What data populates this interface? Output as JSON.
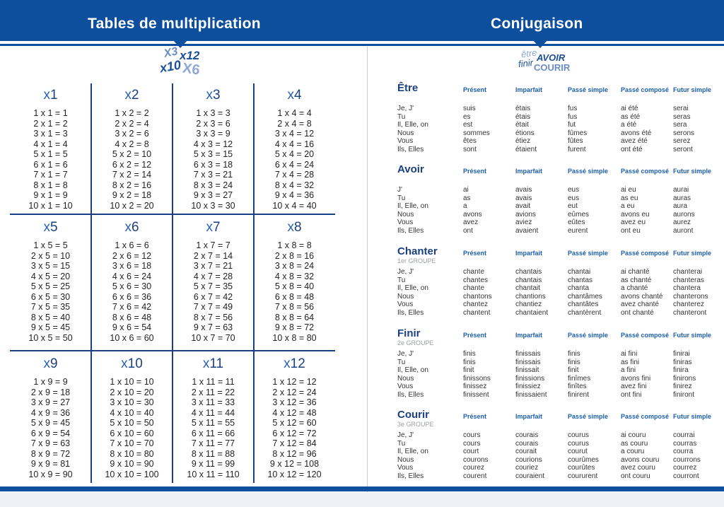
{
  "left_page": {
    "title": "Tables de multiplication",
    "deco_icon": "multiplication-signs-decoration",
    "deco_text": [
      "X3",
      "x12",
      "x10",
      "X6"
    ],
    "tables": [
      {
        "n": "1",
        "rows": [
          "1 x 1 = 1",
          "2 x 1 = 2",
          "3 x 1 = 3",
          "4 x 1 = 4",
          "5 x 1 = 5",
          "6 x 1 = 6",
          "7 x 1 = 7",
          "8 x 1 = 8",
          "9 x 1 = 9",
          "10 x 1 = 10"
        ]
      },
      {
        "n": "2",
        "rows": [
          "1 x 2 = 2",
          "2 x 2 = 4",
          "3 x 2 = 6",
          "4 x 2 = 8",
          "5 x 2 = 10",
          "6 x 2 = 12",
          "7 x 2 = 14",
          "8 x 2 = 16",
          "9 x 2 = 18",
          "10 x 2 = 20"
        ]
      },
      {
        "n": "3",
        "rows": [
          "1 x 3 = 3",
          "2 x 3 = 6",
          "3 x 3 = 9",
          "4 x 3 = 12",
          "5 x 3 = 15",
          "6 x 3 = 18",
          "7 x 3 = 21",
          "8 x 3 = 24",
          "9 x 3 = 27",
          "10 x 3 = 30"
        ]
      },
      {
        "n": "4",
        "rows": [
          "1 x 4 = 4",
          "2 x 4 = 8",
          "3 x 4 = 12",
          "4 x 4 = 16",
          "5 x 4 = 20",
          "6 x 4 = 24",
          "7 x 4 = 28",
          "8 x 4 = 32",
          "9 x 4 = 36",
          "10 x 4 = 40"
        ]
      },
      {
        "n": "5",
        "rows": [
          "1 x 5 = 5",
          "2 x 5 = 10",
          "3 x 5 = 15",
          "4 x 5 = 20",
          "5 x 5 = 25",
          "6 x 5 = 30",
          "7 x 5 = 35",
          "8 x 5 = 40",
          "9 x 5 = 45",
          "10 x 5 = 50"
        ]
      },
      {
        "n": "6",
        "rows": [
          "1 x 6 = 6",
          "2 x 6 = 12",
          "3 x 6 = 18",
          "4 x 6 = 24",
          "5 x 6 = 30",
          "6 x 6 = 36",
          "7 x 6 = 42",
          "8 x 6 = 48",
          "9 x 6 = 54",
          "10 x 6 = 60"
        ]
      },
      {
        "n": "7",
        "rows": [
          "1 x 7 = 7",
          "2 x 7 = 14",
          "3 x 7 = 21",
          "4 x 7 = 28",
          "5 x 7 = 35",
          "6 x 7 = 42",
          "7 x 7 = 49",
          "8 x 7 = 56",
          "9 x 7 = 63",
          "10 x 7 = 70"
        ]
      },
      {
        "n": "8",
        "rows": [
          "1 x 8 = 8",
          "2 x 8 = 16",
          "3 x 8 = 24",
          "4 x 8 = 32",
          "5 x 8 = 40",
          "6 x 8 = 48",
          "7 x 8 = 56",
          "8 x 8 = 64",
          "9 x 8 = 72",
          "10 x 8 = 80"
        ]
      },
      {
        "n": "9",
        "rows": [
          "1 x 9 = 9",
          "2 x 9 = 18",
          "3 x 9 = 27",
          "4 x 9 = 36",
          "5 x 9 = 45",
          "6 x 9 = 54",
          "7 x 9 = 63",
          "8 x 9 = 72",
          "9 x 9 = 81",
          "10 x 9 = 90"
        ]
      },
      {
        "n": "10",
        "rows": [
          "1 x 10 = 10",
          "2 x 10 = 20",
          "3 x 10 = 30",
          "4 x 10 = 40",
          "5 x 10 = 50",
          "6 x 10 = 60",
          "7 x 10 = 70",
          "8 x 10 = 80",
          "9 x 10 = 90",
          "10 x 10 = 100"
        ]
      },
      {
        "n": "11",
        "rows": [
          "1 x 11 = 11",
          "2 x 11 = 22",
          "3 x 11 = 33",
          "4 x 11 = 44",
          "5 x 11 = 55",
          "6 x 11 = 66",
          "7 x 11 = 77",
          "8 x 11 = 88",
          "9 x 11 = 99",
          "10 x 11 = 110"
        ]
      },
      {
        "n": "12",
        "rows": [
          "1 x 12 = 12",
          "2 x 12 = 24",
          "3 x 12 = 36",
          "4 x 12 = 48",
          "5 x 12 = 60",
          "6 x 12 = 72",
          "7 x 12 = 84",
          "8 x 12 = 96",
          "9 x 12 = 108",
          "10 x 12 = 120"
        ]
      }
    ]
  },
  "right_page": {
    "title": "Conjugaison",
    "deco_icon": "verbs-decoration",
    "deco_text": [
      "être",
      "AVOIR",
      "finir",
      "COURIR"
    ],
    "tenses": [
      "Présent",
      "Imparfait",
      "Passé simple",
      "Passé composé",
      "Futur simple"
    ],
    "verbs": [
      {
        "name": "Être",
        "group": "",
        "pronouns": [
          "Je, J'",
          "Tu",
          "Il, Elle, on",
          "Nous",
          "Vous",
          "Ils, Elles"
        ],
        "present": [
          "suis",
          "es",
          "est",
          "sommes",
          "êtes",
          "sont"
        ],
        "imparfait": [
          "étais",
          "étais",
          "était",
          "étions",
          "étiez",
          "étaient"
        ],
        "passe_simple": [
          "fus",
          "fus",
          "fut",
          "fûmes",
          "fûtes",
          "furent"
        ],
        "passe_compose": [
          "ai été",
          "as été",
          "a été",
          "avons été",
          "avez été",
          "ont été"
        ],
        "futur": [
          "serai",
          "seras",
          "sera",
          "serons",
          "serez",
          "seront"
        ]
      },
      {
        "name": "Avoir",
        "group": "",
        "pronouns": [
          "J'",
          "Tu",
          "Il, Elle, on",
          "Nous",
          "Vous",
          "Ils, Elles"
        ],
        "present": [
          "ai",
          "as",
          "a",
          "avons",
          "avez",
          "ont"
        ],
        "imparfait": [
          "avais",
          "avais",
          "avait",
          "avions",
          "aviez",
          "avaient"
        ],
        "passe_simple": [
          "eus",
          "eus",
          "eut",
          "eûmes",
          "eûtes",
          "eurent"
        ],
        "passe_compose": [
          "ai eu",
          "as eu",
          "a eu",
          "avons eu",
          "avez eu",
          "ont eu"
        ],
        "futur": [
          "aurai",
          "auras",
          "aura",
          "aurons",
          "aurez",
          "auront"
        ]
      },
      {
        "name": "Chanter",
        "group": "1er GROUPE",
        "pronouns": [
          "Je, J'",
          "Tu",
          "Il, Elle, on",
          "Nous",
          "Vous",
          "Ils, Elles"
        ],
        "present": [
          "chante",
          "chantes",
          "chante",
          "chantons",
          "chantez",
          "chantent"
        ],
        "imparfait": [
          "chantais",
          "chantais",
          "chantait",
          "chantions",
          "chantiez",
          "chantaient"
        ],
        "passe_simple": [
          "chantai",
          "chantas",
          "chanta",
          "chantâmes",
          "chantâtes",
          "chantèrent"
        ],
        "passe_compose": [
          "ai chanté",
          "as chanté",
          "a chanté",
          "avons chanté",
          "avez chanté",
          "ont chanté"
        ],
        "futur": [
          "chanterai",
          "chanteras",
          "chantera",
          "chanterons",
          "chanterez",
          "chanteront"
        ]
      },
      {
        "name": "Finir",
        "group": "2e GROUPE",
        "pronouns": [
          "Je, J'",
          "Tu",
          "Il, Elle, on",
          "Nous",
          "Vous",
          "Ils, Elles"
        ],
        "present": [
          "finis",
          "finis",
          "finit",
          "finissons",
          "finissez",
          "finissent"
        ],
        "imparfait": [
          "finissais",
          "finissais",
          "finissait",
          "finissions",
          "finissiez",
          "finissaient"
        ],
        "passe_simple": [
          "finis",
          "finis",
          "finit",
          "finîmes",
          "finîtes",
          "finirent"
        ],
        "passe_compose": [
          "ai fini",
          "as fini",
          "a fini",
          "avons fini",
          "avez fini",
          "ont fini"
        ],
        "futur": [
          "finirai",
          "finiras",
          "finira",
          "finirons",
          "finirez",
          "finiront"
        ]
      },
      {
        "name": "Courir",
        "group": "3e GROUPE",
        "pronouns": [
          "Je, J'",
          "Tu",
          "Il, Elle, on",
          "Nous",
          "Vous",
          "Ils, Elles"
        ],
        "present": [
          "cours",
          "cours",
          "court",
          "courons",
          "courez",
          "courent"
        ],
        "imparfait": [
          "courais",
          "courais",
          "courait",
          "courions",
          "couriez",
          "couraient"
        ],
        "passe_simple": [
          "courus",
          "courus",
          "courut",
          "courûmes",
          "courûtes",
          "coururent"
        ],
        "passe_compose": [
          "ai couru",
          "as couru",
          "a couru",
          "avons couru",
          "avez couru",
          "ont couru"
        ],
        "futur": [
          "courrai",
          "courras",
          "courra",
          "courrons",
          "courrez",
          "courront"
        ]
      }
    ]
  }
}
